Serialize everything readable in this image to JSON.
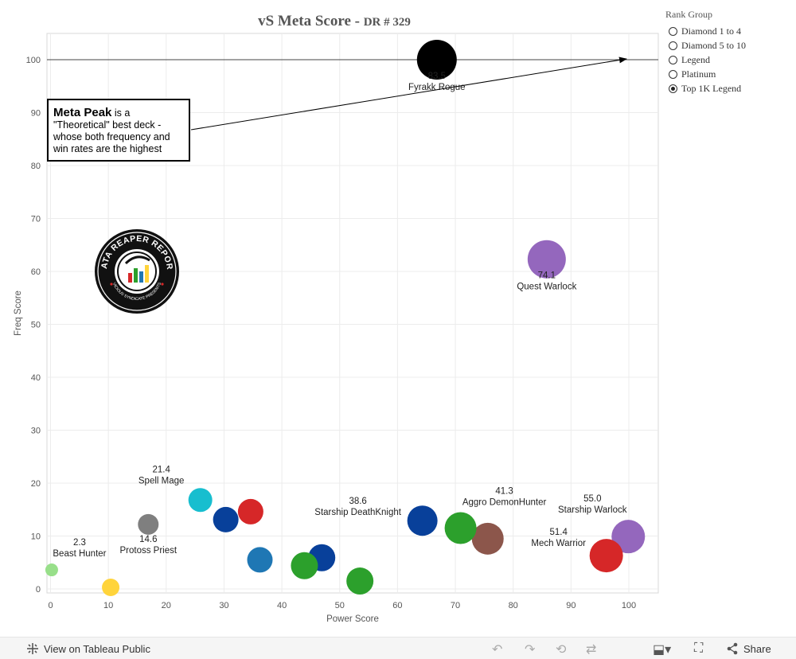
{
  "title": {
    "main": "vS  Meta  Score  -",
    "sub": "DR  #  329"
  },
  "legend": {
    "title": "Rank Group",
    "items": [
      {
        "label": "Diamond  1  to  4",
        "selected": false
      },
      {
        "label": "Diamond  5  to  10",
        "selected": false
      },
      {
        "label": "Legend",
        "selected": false
      },
      {
        "label": "Platinum",
        "selected": false
      },
      {
        "label": "Top  1K  Legend",
        "selected": true
      }
    ]
  },
  "annotation": {
    "bold": "Meta Peak",
    "text": " is a \"Theoretical\" best deck - whose both frequency and win rates are the highest"
  },
  "logo": {
    "top_text": "DATA REAPER REPORT",
    "bottom_text": "VICIOUS SYNDICATE PRESENTS"
  },
  "footer": {
    "view_label": "View on Tableau Public",
    "share_label": "Share"
  },
  "chart_data": {
    "type": "scatter",
    "xlabel": "Power Score",
    "ylabel": "Freq Score",
    "xlim": [
      0,
      105
    ],
    "ylim": [
      0,
      105
    ],
    "xticks": [
      0,
      10,
      20,
      30,
      40,
      50,
      60,
      70,
      80,
      90,
      100
    ],
    "yticks": [
      0,
      10,
      20,
      30,
      40,
      50,
      60,
      70,
      80,
      90,
      100
    ],
    "grid": true,
    "reference_line_y": 100,
    "points": [
      {
        "x": 66.8,
        "y": 100,
        "color": "#000000",
        "r": 25,
        "label": "Fyrakk Rogue",
        "value": "83.5"
      },
      {
        "x": 85.8,
        "y": 62.3,
        "color": "#9467bd",
        "r": 24,
        "label": "Quest Warlock",
        "value": "74.1"
      },
      {
        "x": 99.9,
        "y": 9.9,
        "color": "#9467bd",
        "r": 21,
        "label": "Starship Warlock",
        "value": "55.0"
      },
      {
        "x": 96.1,
        "y": 6.3,
        "color": "#d62728",
        "r": 21,
        "label": "Mech Warrior",
        "value": "51.4"
      },
      {
        "x": 75.6,
        "y": 9.5,
        "color": "#8c564b",
        "r": 20,
        "label": "",
        "value": ""
      },
      {
        "x": 70.9,
        "y": 11.5,
        "color": "#2ca02c",
        "r": 20,
        "label": "Aggro DemonHunter",
        "value": "41.3"
      },
      {
        "x": 64.3,
        "y": 12.9,
        "color": "#08409a",
        "r": 19,
        "label": "Starship DeathKnight",
        "value": "38.6"
      },
      {
        "x": 53.5,
        "y": 1.5,
        "color": "#2ca02c",
        "r": 17,
        "label": "",
        "value": ""
      },
      {
        "x": 46.9,
        "y": 5.9,
        "color": "#08409a",
        "r": 17,
        "label": "",
        "value": ""
      },
      {
        "x": 43.9,
        "y": 4.4,
        "color": "#2ca02c",
        "r": 17,
        "label": "",
        "value": ""
      },
      {
        "x": 36.2,
        "y": 5.5,
        "color": "#1f77b4",
        "r": 16,
        "label": "",
        "value": ""
      },
      {
        "x": 34.6,
        "y": 14.6,
        "color": "#d62728",
        "r": 16,
        "label": "",
        "value": ""
      },
      {
        "x": 30.3,
        "y": 13.1,
        "color": "#08409a",
        "r": 16,
        "label": "",
        "value": ""
      },
      {
        "x": 25.9,
        "y": 16.8,
        "color": "#17becf",
        "r": 15,
        "label": "Spell Mage",
        "value": "21.4"
      },
      {
        "x": 16.9,
        "y": 12.2,
        "color": "#7f7f7f",
        "r": 13,
        "label": "Protoss Priest",
        "value": "14.6"
      },
      {
        "x": 10.4,
        "y": 0.3,
        "color": "#ffd43b",
        "r": 11,
        "label": "",
        "value": ""
      },
      {
        "x": 0.2,
        "y": 3.6,
        "color": "#98df8a",
        "r": 8,
        "label": "Beast Hunter",
        "value": "2.3"
      }
    ]
  }
}
